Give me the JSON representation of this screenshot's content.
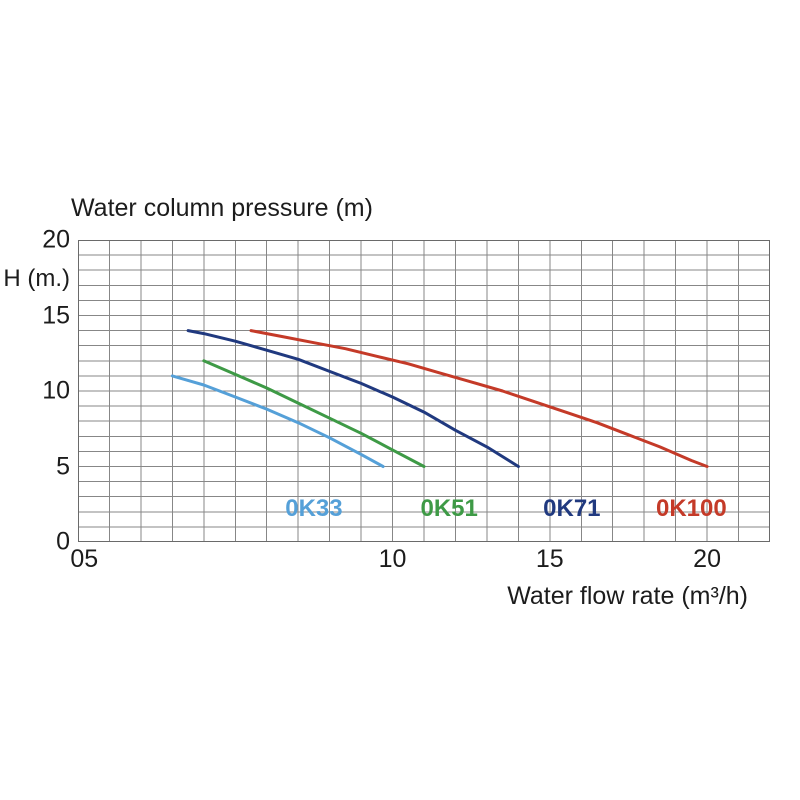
{
  "page": {
    "background_color": "#ffffff",
    "text_color": "#1c1c1c",
    "grid_color": "#878787",
    "grid_border_color": "#6a6a6a"
  },
  "chart": {
    "title": "Water column pressure (m)",
    "y_axis_unit": "H (m.)",
    "x_axis_label": "Water flow rate (m³/h)"
  },
  "chart_data": {
    "type": "line",
    "title": "Water column pressure (m)",
    "xlabel": "Water flow rate (m³/h)",
    "ylabel": "H (m.)",
    "xlim": [
      0,
      22
    ],
    "ylim": [
      0,
      20
    ],
    "x_grid_step": 1,
    "y_grid_step": 1,
    "grid": true,
    "x_ticks": [
      {
        "label": "05",
        "x": 0.2
      },
      {
        "label": "10",
        "x": 10
      },
      {
        "label": "15",
        "x": 15
      },
      {
        "label": "20",
        "x": 20
      }
    ],
    "y_ticks": [
      {
        "label": "20",
        "y": 20
      },
      {
        "label": "15",
        "y": 15
      },
      {
        "label": "10",
        "y": 10
      },
      {
        "label": "5",
        "y": 5
      },
      {
        "label": "0",
        "y": 0
      }
    ],
    "legend_position": "inside-bottom",
    "series": [
      {
        "name": "0K33",
        "color": "#55a0d8",
        "label_x": 7.5,
        "label_y": 2.2,
        "points": [
          [
            3.0,
            11.0
          ],
          [
            4,
            10.4
          ],
          [
            5,
            9.6
          ],
          [
            6,
            8.8
          ],
          [
            7,
            7.9
          ],
          [
            8,
            6.9
          ],
          [
            9,
            5.8
          ],
          [
            9.7,
            5.0
          ]
        ]
      },
      {
        "name": "0K51",
        "color": "#3e9a46",
        "label_x": 11.8,
        "label_y": 2.2,
        "points": [
          [
            4.0,
            12.0
          ],
          [
            5,
            11.1
          ],
          [
            6,
            10.2
          ],
          [
            7,
            9.2
          ],
          [
            8,
            8.2
          ],
          [
            9,
            7.2
          ],
          [
            10,
            6.1
          ],
          [
            11,
            5.0
          ]
        ]
      },
      {
        "name": "0K71",
        "color": "#20397f",
        "label_x": 15.7,
        "label_y": 2.2,
        "points": [
          [
            3.5,
            14.0
          ],
          [
            4,
            13.8
          ],
          [
            5,
            13.3
          ],
          [
            6,
            12.7
          ],
          [
            7,
            12.1
          ],
          [
            8,
            11.3
          ],
          [
            9,
            10.5
          ],
          [
            10,
            9.6
          ],
          [
            11,
            8.6
          ],
          [
            12,
            7.4
          ],
          [
            13,
            6.3
          ],
          [
            14,
            5.0
          ]
        ]
      },
      {
        "name": "0K100",
        "color": "#c43a28",
        "label_x": 19.5,
        "label_y": 2.2,
        "points": [
          [
            5.5,
            14.0
          ],
          [
            6.5,
            13.6
          ],
          [
            7.5,
            13.2
          ],
          [
            8.5,
            12.8
          ],
          [
            9.5,
            12.3
          ],
          [
            10.5,
            11.8
          ],
          [
            11.5,
            11.2
          ],
          [
            12.5,
            10.6
          ],
          [
            13.5,
            10.0
          ],
          [
            14.5,
            9.3
          ],
          [
            15.5,
            8.6
          ],
          [
            16.5,
            7.9
          ],
          [
            17.5,
            7.1
          ],
          [
            18.5,
            6.3
          ],
          [
            19.5,
            5.4
          ],
          [
            20.0,
            5.0
          ]
        ]
      }
    ]
  }
}
